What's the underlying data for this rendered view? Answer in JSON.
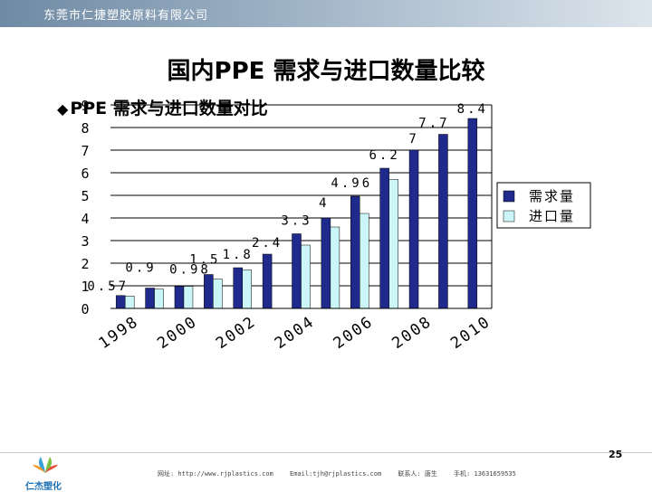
{
  "header": {
    "company": "东莞市仁捷塑胶原料有限公司"
  },
  "slide": {
    "title": "国内PPE 需求与进口数量比较",
    "bullet_symbol": "◆",
    "bullet_text": "PPE 需求与进口数量对比",
    "page_number": "25"
  },
  "footer": {
    "logo_text": "仁杰塑化",
    "website": "网址: http://www.rjplastics.com",
    "email": "Email:tjh@rjplastics.com",
    "contact": "联系人: 唐生",
    "phone": "手机: 13631659535"
  },
  "colors": {
    "header_start": "#6f8aa4",
    "demand": "#1f2a8c",
    "import": "#ccf5f8"
  },
  "chart_data": {
    "type": "bar",
    "title": "PPE 需求与进口数量对比",
    "categories": [
      "1998",
      "1999",
      "2000",
      "2001",
      "2002",
      "2003",
      "2004",
      "2005",
      "2006",
      "2007",
      "2008",
      "2009",
      "2010"
    ],
    "x_tick_labels": [
      "1998",
      "2000",
      "2002",
      "2004",
      "2006",
      "2008",
      "2010"
    ],
    "series": [
      {
        "name": "需求量",
        "values": [
          0.57,
          0.9,
          0.98,
          1.5,
          1.8,
          2.4,
          3.3,
          4,
          4.96,
          6.2,
          7,
          7.7,
          8.4
        ]
      },
      {
        "name": "进口量",
        "values": [
          0.55,
          0.85,
          0.98,
          1.3,
          1.7,
          null,
          2.8,
          3.6,
          4.2,
          5.7,
          null,
          null,
          null
        ]
      }
    ],
    "data_labels": [
      "0.57",
      "0.9",
      "0.98",
      "1.5",
      "1.8",
      "2.4",
      "3.3",
      "4",
      "4.96",
      "6.2",
      "7",
      "7.7",
      "8.4"
    ],
    "y_ticks": [
      "0",
      "1",
      "2",
      "3",
      "4",
      "5",
      "6",
      "7",
      "8",
      "9"
    ],
    "ylim": [
      0,
      9
    ],
    "legend": [
      "需求量",
      "进口量"
    ],
    "legend_position": "right",
    "grid": true
  }
}
